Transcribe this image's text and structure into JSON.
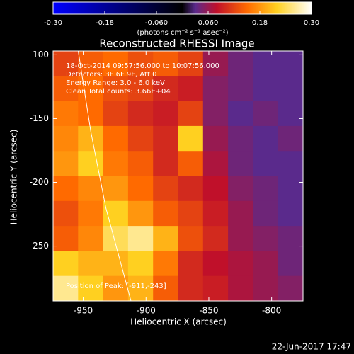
{
  "chart_data": {
    "type": "heatmap",
    "title": "Reconstructed RHESSI Image",
    "colorbar_label": "(photons cm⁻² s⁻¹ asec⁻²)",
    "x_label": "Heliocentric X (arcsec)",
    "y_label": "Heliocentric Y (arcsec)",
    "annotations": [
      "18-Oct-2014 09:57:56.000 to 10:07:56.000",
      "Detectors: 3F 6F 9F, Att 0",
      "Energy Range: 3.0 - 6.0 keV",
      "Clean     Total counts: 3.66E+04"
    ],
    "peak_label": "Position of Peak: [-911,-243]",
    "footer": "22-Jun-2017 17:47",
    "xlim": [
      -974,
      -775
    ],
    "ylim": [
      -293,
      -97
    ],
    "xticks": [
      -950,
      -900,
      -850,
      -800
    ],
    "yticks": [
      -100,
      -150,
      -200,
      -250
    ],
    "clim": [
      -0.3,
      0.3
    ],
    "cticks": [
      {
        "value": -0.3,
        "label": "-0.30"
      },
      {
        "value": -0.18,
        "label": "-0.18"
      },
      {
        "value": -0.06,
        "label": "-0.060"
      },
      {
        "value": 0.06,
        "label": "0.060"
      },
      {
        "value": 0.18,
        "label": "0.18"
      },
      {
        "value": 0.3,
        "label": "0.30"
      }
    ],
    "colormap": [
      {
        "value": -0.3,
        "color": "#0000ff"
      },
      {
        "value": 0,
        "color": "#000000"
      },
      {
        "value": 0.03,
        "color": "#5a2a8c"
      },
      {
        "value": 0.08,
        "color": "#c0102a"
      },
      {
        "value": 0.15,
        "color": "#ff6a00"
      },
      {
        "value": 0.22,
        "color": "#ffd020"
      },
      {
        "value": 0.3,
        "color": "#ffffff"
      }
    ],
    "z": [
      [
        0.12,
        0.14,
        0.15,
        0.13,
        0.14,
        0.12,
        0.06,
        0.04,
        0.03,
        0.03
      ],
      [
        0.14,
        0.15,
        0.13,
        0.12,
        0.1,
        0.09,
        0.05,
        0.04,
        0.03,
        0.03
      ],
      [
        0.16,
        0.15,
        0.12,
        0.1,
        0.09,
        0.12,
        0.05,
        0.03,
        0.04,
        0.03
      ],
      [
        0.17,
        0.2,
        0.15,
        0.12,
        0.1,
        0.22,
        0.06,
        0.04,
        0.03,
        0.04
      ],
      [
        0.18,
        0.22,
        0.16,
        0.14,
        0.1,
        0.14,
        0.07,
        0.04,
        0.03,
        0.03
      ],
      [
        0.15,
        0.17,
        0.18,
        0.15,
        0.12,
        0.1,
        0.08,
        0.05,
        0.04,
        0.03
      ],
      [
        0.13,
        0.16,
        0.22,
        0.18,
        0.14,
        0.12,
        0.09,
        0.06,
        0.04,
        0.03
      ],
      [
        0.14,
        0.17,
        0.24,
        0.26,
        0.2,
        0.13,
        0.1,
        0.06,
        0.05,
        0.04
      ],
      [
        0.22,
        0.2,
        0.2,
        0.22,
        0.16,
        0.1,
        0.08,
        0.07,
        0.06,
        0.04
      ],
      [
        0.26,
        0.22,
        0.18,
        0.2,
        0.14,
        0.1,
        0.09,
        0.07,
        0.06,
        0.05
      ]
    ],
    "limb": {
      "color": "#ffffff",
      "x": [
        -954,
        -944,
        -932,
        -912
      ],
      "y": [
        -97,
        -160,
        -220,
        -293
      ]
    }
  }
}
